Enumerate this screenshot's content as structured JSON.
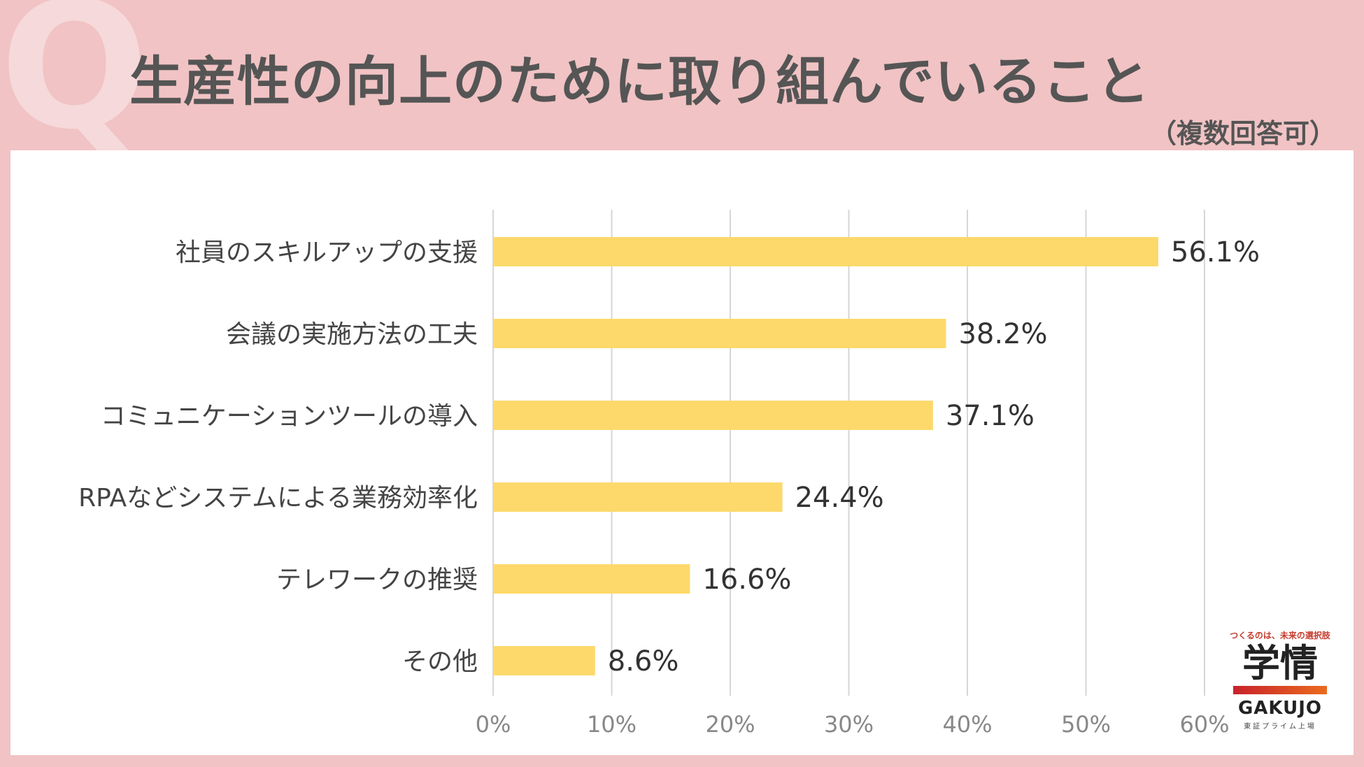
{
  "header": {
    "q_mark": "Q",
    "title": "生産性の向上のために取り組んでいること",
    "subtitle": "（複数回答可）"
  },
  "chart_data": {
    "type": "bar",
    "orientation": "horizontal",
    "categories": [
      "社員のスキルアップの支援",
      "会議の実施方法の工夫",
      "コミュニケーションツールの導入",
      "RPAなどシステムによる業務効率化",
      "テレワークの推奨",
      "その他"
    ],
    "values": [
      56.1,
      38.2,
      37.1,
      24.4,
      16.6,
      8.6
    ],
    "value_labels": [
      "56.1%",
      "38.2%",
      "37.1%",
      "24.4%",
      "16.6%",
      "8.6%"
    ],
    "xlim": [
      0,
      60
    ],
    "x_ticks": [
      "0%",
      "10%",
      "20%",
      "30%",
      "40%",
      "50%",
      "60%"
    ],
    "grid": true,
    "bar_color": "#fdd96b",
    "grid_color": "#d6d6d6"
  },
  "logo": {
    "tagline": "つくるのは、未来の選択肢",
    "main": "学情",
    "brand": "GAKUJO",
    "sub": "東証プライム上場"
  },
  "colors": {
    "background": "#f1c3c4",
    "title": "#555555",
    "panel": "#ffffff"
  }
}
